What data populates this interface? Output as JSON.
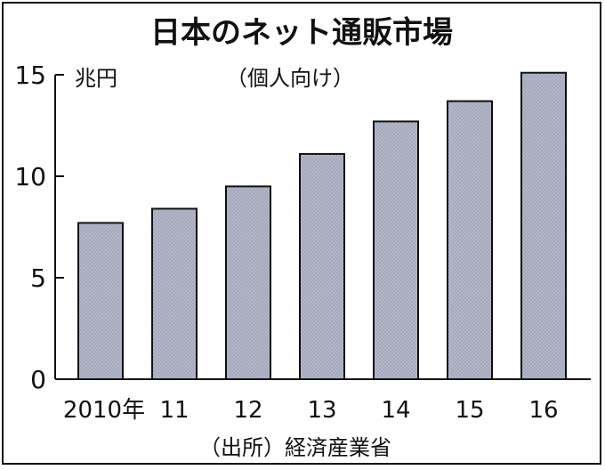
{
  "chart_data": {
    "type": "bar",
    "title": "日本のネット通販市場",
    "subtitle": "（個人向け）",
    "unit_label": "兆円",
    "source": "（出所）経済産業省",
    "categories": [
      "2010年",
      "11",
      "12",
      "13",
      "14",
      "15",
      "16"
    ],
    "values": [
      7.7,
      8.4,
      9.5,
      11.1,
      12.7,
      13.7,
      15.1
    ],
    "ylim": [
      0,
      15
    ],
    "yticks": [
      "0",
      "5",
      "10",
      "15"
    ],
    "grid": false,
    "bar_color": "#b4b7c9"
  }
}
